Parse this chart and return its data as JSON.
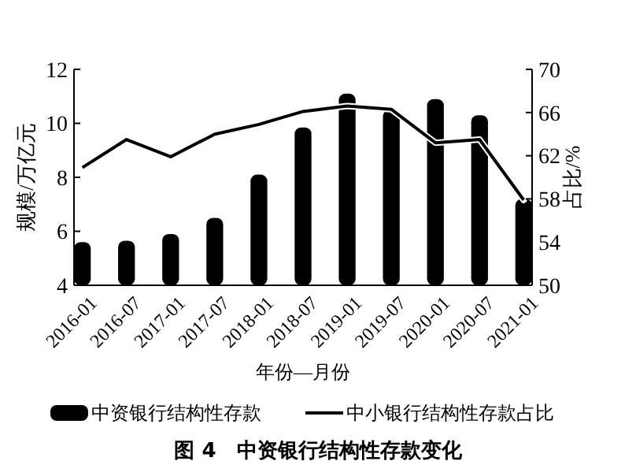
{
  "chart_data": {
    "type": "bar",
    "title": "图 4　中资银行结构性存款变化",
    "xlabel": "年份—月份",
    "ylabel": "规模/万亿元",
    "y2label": "占比/%",
    "categories": [
      "2016-01",
      "2016-07",
      "2017-01",
      "2017-07",
      "2018-01",
      "2018-07",
      "2019-01",
      "2019-07",
      "2020-01",
      "2020-07",
      "2021-01"
    ],
    "series": [
      {
        "name": "中资银行结构性存款",
        "color": "#000000",
        "values": [
          5.6,
          5.65,
          5.9,
          6.5,
          8.1,
          9.85,
          11.1,
          10.5,
          10.9,
          10.3,
          7.2
        ]
      },
      {
        "name": "中小银行结构性存款占比",
        "type": "line",
        "axis": "y2",
        "color": "#000000",
        "values": [
          60.9,
          63.5,
          61.9,
          64,
          64.9,
          66.1,
          66.6,
          66.3,
          63.2,
          63.5,
          57.9
        ]
      }
    ],
    "ylim": [
      4,
      12
    ],
    "yticks": [
      4,
      6,
      8,
      10,
      12
    ],
    "y2lim": [
      50,
      70
    ],
    "y2ticks": [
      50,
      54,
      58,
      62,
      66,
      70
    ],
    "legend": "bottom",
    "grid": false
  }
}
